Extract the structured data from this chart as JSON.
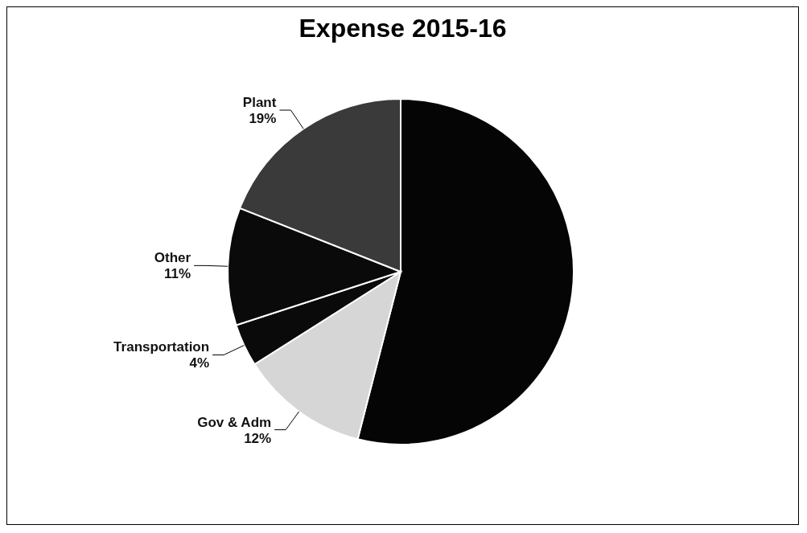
{
  "chart_data": {
    "type": "pie",
    "title": "Expense 2015-16",
    "categories": [
      null,
      "Gov & Adm",
      "Transportation",
      "Other",
      "Plant"
    ],
    "values": [
      54,
      12,
      4,
      11,
      19
    ],
    "colors": [
      "#050505",
      "#d6d6d6",
      "#0a0a0a",
      "#0a0a0a",
      "#3a3a3a"
    ],
    "value_labels": [
      null,
      "12%",
      "4%",
      "11%",
      "19%"
    ],
    "legend": false
  }
}
